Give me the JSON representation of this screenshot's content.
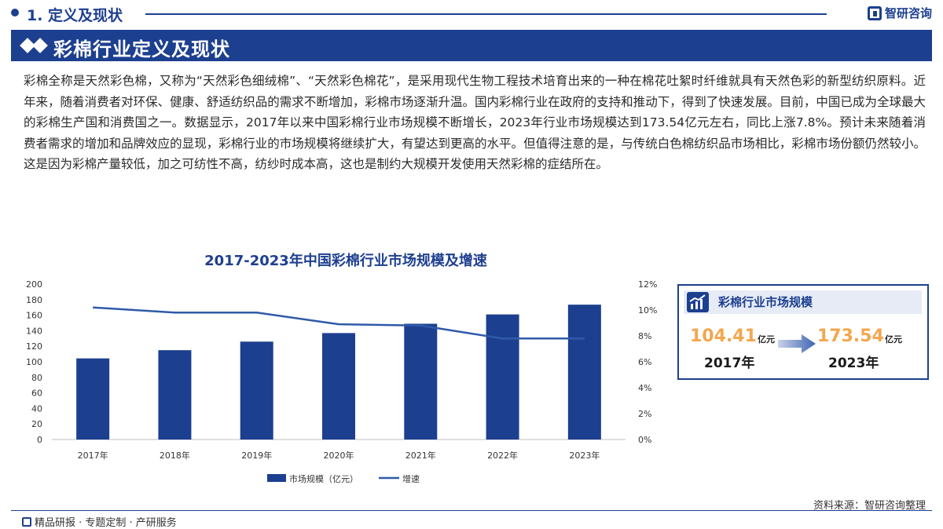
{
  "header": {
    "section_label": "1. 定义及现状",
    "brand": "智研咨询"
  },
  "banner": {
    "title": "彩棉行业定义及现状"
  },
  "body_text": "彩棉全称是天然彩色棉，又称为“天然彩色细绒棉”、“天然彩色棉花”，是采用现代生物工程技术培育出来的一种在棉花吐絮时纤维就具有天然色彩的新型纺织原料。近年来，随着消费者对环保、健康、舒适纺织品的需求不断增加，彩棉市场逐渐升温。国内彩棉行业在政府的支持和推动下，得到了快速发展。目前，中国已成为全球最大的彩棉生产国和消费国之一。数据显示，2017年以来中国彩棉行业市场规模不断增长，2023年行业市场规模达到173.54亿元左右，同比上涨7.8%。预计未来随着消费者需求的增加和品牌效应的显现，彩棉行业的市场规模将继续扩大，有望达到更高的水平。但值得注意的是，与传统白色棉纺织品市场相比，彩棉市场份额仍然较小。这是因为彩棉产量较低，加之可纺性不高，纺纱时成本高，这也是制约大规模开发使用天然彩棉的症结所在。",
  "chart_data": {
    "type": "bar",
    "title": "2017-2023年中国彩棉行业市场规模及增速",
    "categories": [
      "2017年",
      "2018年",
      "2019年",
      "2020年",
      "2021年",
      "2022年",
      "2023年"
    ],
    "series": [
      {
        "name": "市场规模（亿元）",
        "type": "bar",
        "axis": "left",
        "values": [
          104.41,
          115,
          126,
          137,
          149,
          161,
          173.54
        ]
      },
      {
        "name": "增速",
        "type": "line",
        "axis": "right",
        "values": [
          10.2,
          9.8,
          9.8,
          8.9,
          8.8,
          7.8,
          7.8
        ]
      }
    ],
    "ylim_left": [
      0,
      200
    ],
    "yticks_left": [
      "0",
      "20",
      "40",
      "60",
      "80",
      "100",
      "120",
      "140",
      "160",
      "180",
      "200"
    ],
    "ylim_right": [
      0,
      12
    ],
    "yticks_right": [
      "0%",
      "2%",
      "4%",
      "6%",
      "8%",
      "10%",
      "12%"
    ],
    "grid": false,
    "legend_position": "bottom",
    "colors": {
      "bar": "#1d3f8f",
      "line": "#2f5aa8"
    }
  },
  "card": {
    "title": "彩棉行业市场规模",
    "from_value": "104.41",
    "from_unit": "亿元",
    "from_year": "2017年",
    "to_value": "173.54",
    "to_unit": "亿元",
    "to_year": "2023年"
  },
  "footer": {
    "source": "资料来源：智研咨询整理",
    "tagline": "精品研报 · 专题定制 · 产研服务"
  },
  "colors": {
    "primary": "#1d3f8f",
    "accent": "#f3a74f"
  }
}
